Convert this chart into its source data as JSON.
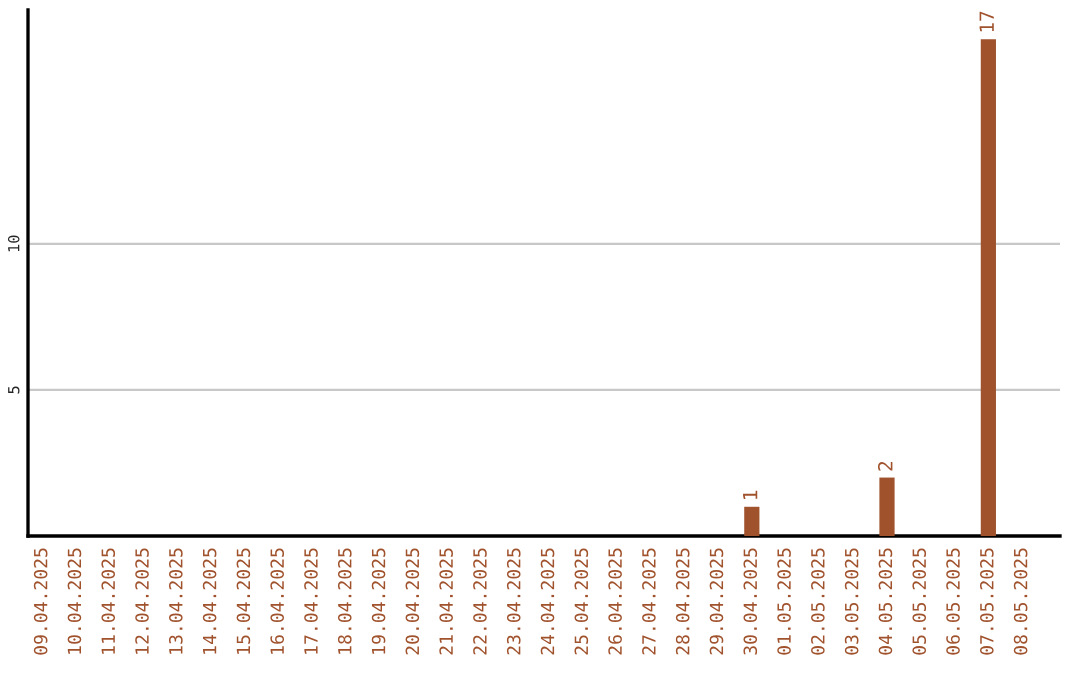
{
  "chart_data": {
    "type": "bar",
    "categories": [
      "09.04.2025",
      "10.04.2025",
      "11.04.2025",
      "12.04.2025",
      "13.04.2025",
      "14.04.2025",
      "15.04.2025",
      "16.04.2025",
      "17.04.2025",
      "18.04.2025",
      "19.04.2025",
      "20.04.2025",
      "21.04.2025",
      "22.04.2025",
      "23.04.2025",
      "24.04.2025",
      "25.04.2025",
      "26.04.2025",
      "27.04.2025",
      "28.04.2025",
      "29.04.2025",
      "30.04.2025",
      "01.05.2025",
      "02.05.2025",
      "03.05.2025",
      "04.05.2025",
      "05.05.2025",
      "06.05.2025",
      "07.05.2025",
      "08.05.2025"
    ],
    "values": [
      0,
      0,
      0,
      0,
      0,
      0,
      0,
      0,
      0,
      0,
      0,
      0,
      0,
      0,
      0,
      0,
      0,
      0,
      0,
      0,
      0,
      1,
      0,
      0,
      0,
      2,
      0,
      0,
      17,
      0
    ],
    "value_labels": [
      null,
      null,
      null,
      null,
      null,
      null,
      null,
      null,
      null,
      null,
      null,
      null,
      null,
      null,
      null,
      null,
      null,
      null,
      null,
      null,
      null,
      "1",
      null,
      null,
      null,
      "2",
      null,
      null,
      "17",
      null
    ],
    "color": "#a0522d",
    "ylim": [
      0,
      18
    ],
    "yticks": [
      5,
      10
    ],
    "grid": "y"
  }
}
